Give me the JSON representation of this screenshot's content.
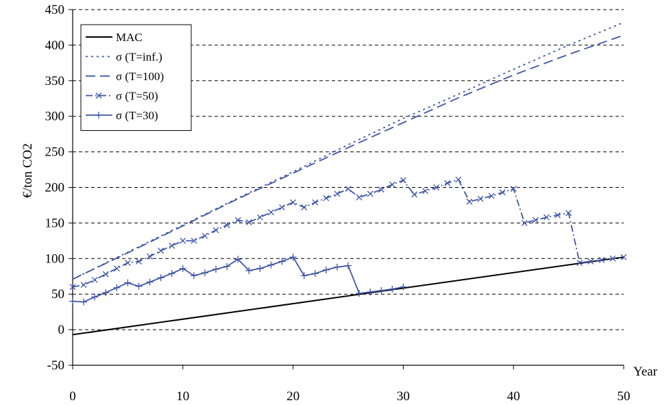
{
  "chart_data": {
    "type": "line",
    "title": "",
    "xlabel": "Year",
    "ylabel": "€/ton CO2",
    "xlim": [
      0,
      50
    ],
    "ylim": [
      -50,
      450
    ],
    "xticks": [
      0,
      10,
      20,
      30,
      40,
      50
    ],
    "yticks": [
      -50,
      0,
      50,
      100,
      150,
      200,
      250,
      300,
      350,
      400,
      450
    ],
    "grid": "horizontal dashed",
    "legend_position": "top-left",
    "series": [
      {
        "name": "MAC",
        "style": "solid",
        "color": "#000000",
        "marker": "none",
        "x": [
          0,
          50
        ],
        "y": [
          -7,
          102
        ]
      },
      {
        "name": "σ (T=inf.)",
        "style": "dotted",
        "color": "#3F55A6",
        "marker": "none",
        "x": [
          0,
          5,
          10,
          15,
          20,
          25,
          30,
          35,
          40,
          45,
          50
        ],
        "y": [
          71,
          109,
          147,
          185,
          222,
          260,
          297,
          331,
          366,
          400,
          432
        ]
      },
      {
        "name": "σ (T=100)",
        "style": "dashed",
        "color": "#3F55A6",
        "marker": "none",
        "x": [
          0,
          5,
          10,
          15,
          20,
          25,
          30,
          35,
          40,
          45,
          50
        ],
        "y": [
          71,
          108,
          146,
          184,
          220,
          256,
          291,
          326,
          358,
          387,
          414
        ]
      },
      {
        "name": "σ (T=50)",
        "style": "dashdot",
        "color": "#3F55A6",
        "marker": "x",
        "x": [
          0,
          1,
          2,
          3,
          4,
          5,
          6,
          7,
          8,
          9,
          10,
          11,
          12,
          13,
          14,
          15,
          16,
          17,
          18,
          19,
          20,
          21,
          22,
          23,
          24,
          25,
          26,
          27,
          28,
          29,
          30,
          31,
          32,
          33,
          34,
          35,
          36,
          37,
          38,
          39,
          40,
          41,
          42,
          43,
          44,
          45,
          46,
          47,
          48,
          49,
          50
        ],
        "y": [
          60,
          63,
          70,
          78,
          86,
          94,
          96,
          103,
          111,
          118,
          125,
          125,
          132,
          140,
          147,
          154,
          151,
          158,
          165,
          172,
          179,
          172,
          179,
          185,
          191,
          198,
          186,
          191,
          197,
          204,
          210,
          190,
          195,
          200,
          206,
          211,
          180,
          184,
          188,
          193,
          198,
          150,
          154,
          158,
          161,
          164,
          94,
          96,
          98,
          100,
          102
        ]
      },
      {
        "name": "σ (T=30)",
        "style": "solid",
        "color": "#3F55A6",
        "marker": "+",
        "x": [
          0,
          1,
          2,
          3,
          4,
          5,
          6,
          7,
          8,
          9,
          10,
          11,
          12,
          13,
          14,
          15,
          16,
          17,
          18,
          19,
          20,
          21,
          22,
          23,
          24,
          25,
          26,
          27,
          28,
          29,
          30
        ],
        "y": [
          40,
          39,
          46,
          52,
          59,
          66,
          61,
          67,
          73,
          79,
          86,
          76,
          80,
          85,
          89,
          99,
          83,
          86,
          91,
          96,
          102,
          76,
          79,
          84,
          88,
          90,
          51,
          53,
          55,
          57,
          60
        ]
      }
    ]
  }
}
